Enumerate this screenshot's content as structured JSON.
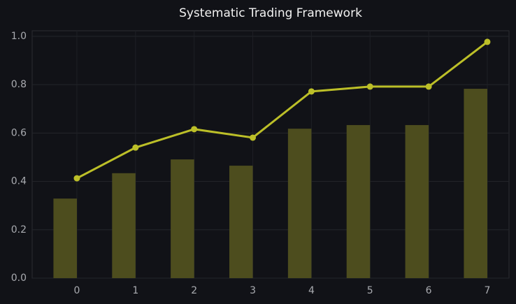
{
  "chart_data": {
    "type": "bar",
    "title": "Systematic Trading Framework",
    "x": [
      0,
      1,
      2,
      3,
      4,
      5,
      6,
      7
    ],
    "series": [
      {
        "type": "bar",
        "color": "#4d4d1e",
        "values": [
          0.329,
          0.434,
          0.491,
          0.465,
          0.618,
          0.633,
          0.633,
          0.783
        ]
      },
      {
        "type": "line",
        "color": "#bcbf28",
        "values": [
          0.413,
          0.54,
          0.616,
          0.581,
          0.772,
          0.792,
          0.792,
          0.977
        ]
      }
    ],
    "xlim": [
      -0.763,
      7.37
    ],
    "xticks": [
      0,
      1,
      2,
      3,
      4,
      5,
      6,
      7
    ],
    "ylim": [
      0,
      1.023
    ],
    "yticks": [
      {
        "value": 0,
        "label": "0.0"
      },
      0.2,
      0.4,
      0.6,
      0.8,
      {
        "value": 1,
        "label": "1.0"
      }
    ],
    "grid": true
  }
}
